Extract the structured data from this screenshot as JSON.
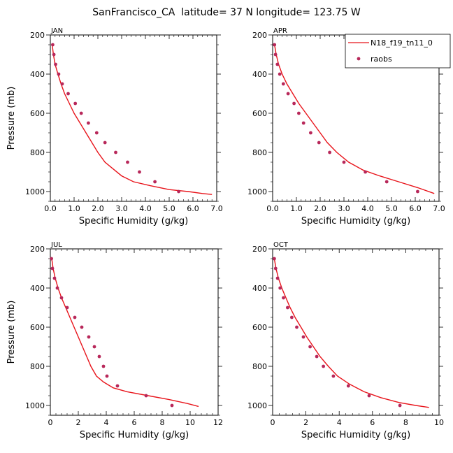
{
  "title": "SanFrancisco_CA  latitude= 37 N longitude= 123.75 W",
  "colors": {
    "model": "#e8141b",
    "obs": "#b8285a",
    "axis": "#000000"
  },
  "legend": {
    "model_label": "N18_f19_tn11_0",
    "obs_label": "raobs",
    "placement": "top-right of APR panel"
  },
  "chart_data": [
    {
      "type": "line",
      "panel": "JAN",
      "xlabel": "Specific Humidity (g/kg)",
      "ylabel": "Pressure (mb)",
      "xlim": [
        0,
        7
      ],
      "ylim": [
        1050,
        200
      ],
      "xticks": [
        "0.0",
        "1.0",
        "2.0",
        "3.0",
        "4.0",
        "5.0",
        "6.0",
        "7.0"
      ],
      "xtick_values": [
        0,
        1,
        2,
        3,
        4,
        5,
        6,
        7
      ],
      "yticks": [
        "200",
        "400",
        "600",
        "800",
        "1000"
      ],
      "ytick_values": [
        200,
        400,
        600,
        800,
        1000
      ],
      "series": [
        {
          "name": "N18_f19_tn11_0",
          "kind": "line",
          "x": [
            0.08,
            0.13,
            0.2,
            0.32,
            0.45,
            0.6,
            0.8,
            1.0,
            1.25,
            1.5,
            1.75,
            2.0,
            2.3,
            2.6,
            3.0,
            3.5,
            4.2,
            5.0,
            5.8,
            6.4,
            6.8
          ],
          "y": [
            250,
            300,
            350,
            400,
            450,
            500,
            550,
            600,
            650,
            700,
            750,
            800,
            850,
            880,
            920,
            950,
            970,
            990,
            1000,
            1010,
            1015
          ]
        },
        {
          "name": "raobs",
          "kind": "scatter",
          "x": [
            0.1,
            0.15,
            0.22,
            0.35,
            0.5,
            0.75,
            1.05,
            1.3,
            1.6,
            1.95,
            2.3,
            2.75,
            3.25,
            3.75,
            4.4,
            5.4
          ],
          "y": [
            250,
            300,
            350,
            400,
            450,
            500,
            550,
            600,
            650,
            700,
            750,
            800,
            850,
            900,
            950,
            1000
          ]
        }
      ]
    },
    {
      "type": "line",
      "panel": "APR",
      "xlabel": "Specific Humidity (g/kg)",
      "ylabel": "",
      "xlim": [
        0,
        7
      ],
      "ylim": [
        1050,
        200
      ],
      "xticks": [
        "0.0",
        "1.0",
        "2.0",
        "3.0",
        "4.0",
        "5.0",
        "6.0",
        "7.0"
      ],
      "xtick_values": [
        0,
        1,
        2,
        3,
        4,
        5,
        6,
        7
      ],
      "yticks": [
        "200",
        "400",
        "600",
        "800",
        "1000"
      ],
      "ytick_values": [
        200,
        400,
        600,
        800,
        1000
      ],
      "series": [
        {
          "name": "N18_f19_tn11_0",
          "kind": "line",
          "x": [
            0.08,
            0.15,
            0.25,
            0.4,
            0.6,
            0.85,
            1.1,
            1.4,
            1.7,
            2.0,
            2.3,
            2.7,
            3.2,
            3.8,
            4.5,
            5.3,
            6.1,
            6.8
          ],
          "y": [
            250,
            300,
            350,
            400,
            450,
            500,
            550,
            600,
            650,
            700,
            750,
            800,
            850,
            890,
            920,
            950,
            980,
            1010
          ]
        },
        {
          "name": "raobs",
          "kind": "scatter",
          "x": [
            0.08,
            0.12,
            0.2,
            0.3,
            0.45,
            0.65,
            0.9,
            1.1,
            1.3,
            1.6,
            1.95,
            2.4,
            3.0,
            3.9,
            4.8,
            6.1
          ],
          "y": [
            250,
            300,
            350,
            400,
            450,
            500,
            550,
            600,
            650,
            700,
            750,
            800,
            850,
            900,
            950,
            1000
          ]
        }
      ]
    },
    {
      "type": "line",
      "panel": "JUL",
      "xlabel": "Specific Humidity (g/kg)",
      "ylabel": "Pressure (mb)",
      "xlim": [
        0,
        12
      ],
      "ylim": [
        1050,
        200
      ],
      "xticks": [
        "0",
        "2",
        "4",
        "6",
        "8",
        "10",
        "12"
      ],
      "xtick_values": [
        0,
        2,
        4,
        6,
        8,
        10,
        12
      ],
      "yticks": [
        "200",
        "400",
        "600",
        "800",
        "1000"
      ],
      "ytick_values": [
        200,
        400,
        600,
        800,
        1000
      ],
      "series": [
        {
          "name": "N18_f19_tn11_0",
          "kind": "line",
          "x": [
            0.1,
            0.2,
            0.35,
            0.55,
            0.8,
            1.1,
            1.4,
            1.7,
            2.0,
            2.3,
            2.6,
            2.9,
            3.3,
            3.8,
            4.5,
            5.5,
            7.0,
            8.5,
            9.8,
            10.6
          ],
          "y": [
            250,
            300,
            350,
            400,
            450,
            500,
            550,
            600,
            650,
            700,
            750,
            800,
            850,
            880,
            910,
            930,
            950,
            970,
            990,
            1005
          ]
        },
        {
          "name": "raobs",
          "kind": "scatter",
          "x": [
            0.08,
            0.15,
            0.3,
            0.5,
            0.8,
            1.2,
            1.75,
            2.25,
            2.75,
            3.15,
            3.5,
            3.8,
            4.05,
            4.8,
            6.85,
            8.7
          ],
          "y": [
            250,
            300,
            350,
            400,
            450,
            500,
            550,
            600,
            650,
            700,
            750,
            800,
            850,
            900,
            950,
            1000
          ]
        }
      ]
    },
    {
      "type": "line",
      "panel": "OCT",
      "xlabel": "Specific Humidity (g/kg)",
      "ylabel": "",
      "xlim": [
        0,
        10
      ],
      "ylim": [
        1050,
        200
      ],
      "xticks": [
        "0",
        "2",
        "4",
        "6",
        "8",
        "10"
      ],
      "xtick_values": [
        0,
        2,
        4,
        6,
        8,
        10
      ],
      "yticks": [
        "200",
        "400",
        "600",
        "800",
        "1000"
      ],
      "ytick_values": [
        200,
        400,
        600,
        800,
        1000
      ],
      "series": [
        {
          "name": "N18_f19_tn11_0",
          "kind": "line",
          "x": [
            0.1,
            0.2,
            0.35,
            0.55,
            0.8,
            1.05,
            1.35,
            1.7,
            2.05,
            2.45,
            2.85,
            3.35,
            3.9,
            4.6,
            5.5,
            6.5,
            7.6,
            8.6,
            9.4
          ],
          "y": [
            250,
            300,
            350,
            400,
            450,
            500,
            550,
            600,
            650,
            700,
            750,
            800,
            850,
            890,
            930,
            960,
            985,
            1000,
            1010
          ]
        },
        {
          "name": "raobs",
          "kind": "scatter",
          "x": [
            0.1,
            0.18,
            0.3,
            0.45,
            0.65,
            0.9,
            1.15,
            1.45,
            1.85,
            2.25,
            2.65,
            3.05,
            3.65,
            4.55,
            5.8,
            7.65
          ],
          "y": [
            250,
            300,
            350,
            400,
            450,
            500,
            550,
            600,
            650,
            700,
            750,
            800,
            850,
            900,
            950,
            1000
          ]
        }
      ]
    }
  ]
}
